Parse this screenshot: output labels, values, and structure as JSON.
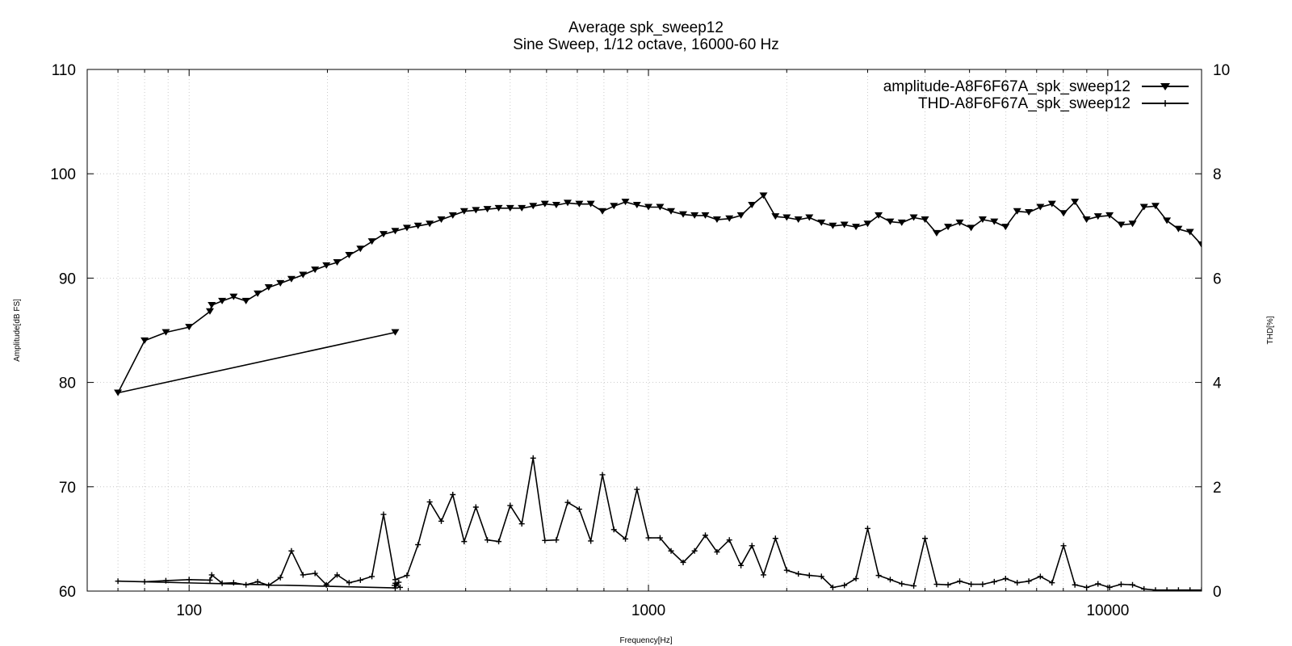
{
  "chart_data": {
    "type": "line",
    "title": "Average spk_sweep12",
    "subtitle": "Sine Sweep, 1/12 octave, 16000-60 Hz",
    "xlabel": "Frequency[Hz]",
    "ylabel": "Amplitude[dB FS]",
    "y2label": "THD[%]",
    "x_scale": "log",
    "xlim": [
      60,
      16000
    ],
    "ylim": [
      60,
      110
    ],
    "y2lim": [
      0,
      10
    ],
    "x_ticks": [
      100,
      1000,
      10000
    ],
    "x_tick_labels": [
      "100",
      "1000",
      "10000"
    ],
    "y_ticks": [
      60,
      70,
      80,
      90,
      100,
      110
    ],
    "y_tick_labels": [
      "60",
      "70",
      "80",
      "90",
      "100",
      "110"
    ],
    "y2_ticks": [
      0,
      2,
      4,
      6,
      8,
      10
    ],
    "y2_tick_labels": [
      "0",
      "2",
      "4",
      "6",
      "8",
      "10"
    ],
    "grid": true,
    "legend_position": "top-right",
    "series": [
      {
        "name": "amplitude-A8F6F67A_spk_sweep12",
        "axis": "left",
        "marker": "triangle-down",
        "x": [
          16000,
          15100,
          14250,
          13450,
          12700,
          11990,
          11320,
          10690,
          10090,
          9520,
          8990,
          8480,
          8010,
          7560,
          7130,
          6730,
          6350,
          5990,
          5660,
          5340,
          5040,
          4760,
          4490,
          4240,
          4000,
          3780,
          3560,
          3360,
          3170,
          3000,
          2830,
          2670,
          2520,
          2380,
          2240,
          2120,
          2000,
          1890,
          1780,
          1680,
          1590,
          1500,
          1410,
          1330,
          1260,
          1190,
          1120,
          1060,
          1000,
          944,
          891,
          841,
          794,
          749,
          707,
          667,
          630,
          595,
          561,
          530,
          500,
          472,
          446,
          421,
          397,
          375,
          354,
          334,
          315,
          298,
          281,
          265,
          250,
          236,
          223,
          210,
          199,
          188,
          177,
          167,
          158,
          149,
          141,
          133,
          125,
          118,
          112,
          111,
          100,
          89,
          80,
          70,
          281
        ],
        "y": [
          93.2,
          94.4,
          94.7,
          95.5,
          96.9,
          96.8,
          95.2,
          95.1,
          96.0,
          95.9,
          95.6,
          97.3,
          96.2,
          97.1,
          96.8,
          96.3,
          96.4,
          94.9,
          95.4,
          95.6,
          94.8,
          95.3,
          94.9,
          94.3,
          95.6,
          95.8,
          95.3,
          95.4,
          96.0,
          95.2,
          94.9,
          95.1,
          95.0,
          95.3,
          95.8,
          95.6,
          95.8,
          95.9,
          97.9,
          97.0,
          96.0,
          95.7,
          95.6,
          96.0,
          96.0,
          96.1,
          96.4,
          96.8,
          96.8,
          97.0,
          97.3,
          96.9,
          96.4,
          97.1,
          97.1,
          97.2,
          97.0,
          97.1,
          96.9,
          96.7,
          96.7,
          96.7,
          96.6,
          96.5,
          96.4,
          96.0,
          95.6,
          95.2,
          95.0,
          94.8,
          94.5,
          94.2,
          93.5,
          92.8,
          92.2,
          91.5,
          91.2,
          90.8,
          90.3,
          89.9,
          89.5,
          89.1,
          88.5,
          87.8,
          88.2,
          87.8,
          87.4,
          86.8,
          85.3,
          84.8,
          84.0,
          79.0,
          84.8
        ],
        "color": "#000000"
      },
      {
        "name": "THD-A8F6F67A_spk_sweep12",
        "axis": "right",
        "marker": "plus",
        "x": [
          16000,
          15100,
          14250,
          13450,
          12700,
          11990,
          11320,
          10690,
          10090,
          9520,
          8990,
          8480,
          8010,
          7560,
          7130,
          6730,
          6350,
          5990,
          5660,
          5340,
          5040,
          4760,
          4490,
          4240,
          4000,
          3780,
          3560,
          3360,
          3170,
          3000,
          2830,
          2670,
          2520,
          2380,
          2240,
          2120,
          2000,
          1890,
          1780,
          1680,
          1590,
          1500,
          1410,
          1330,
          1260,
          1190,
          1120,
          1060,
          1000,
          944,
          891,
          841,
          794,
          749,
          707,
          667,
          630,
          595,
          561,
          530,
          500,
          472,
          446,
          421,
          397,
          375,
          354,
          334,
          315,
          298,
          281,
          265,
          250,
          236,
          223,
          210,
          199,
          188,
          177,
          167,
          158,
          149,
          141,
          133,
          125,
          118,
          112,
          111,
          100,
          89,
          80,
          70,
          281,
          286,
          280,
          281,
          288
        ],
        "y": [
          0.02,
          0.02,
          0.02,
          0.02,
          0.02,
          0.04,
          0.12,
          0.13,
          0.07,
          0.14,
          0.07,
          0.12,
          0.87,
          0.16,
          0.28,
          0.19,
          0.16,
          0.24,
          0.18,
          0.13,
          0.13,
          0.19,
          0.12,
          0.13,
          1.01,
          0.1,
          0.14,
          0.22,
          0.3,
          1.2,
          0.24,
          0.11,
          0.07,
          0.28,
          0.3,
          0.33,
          0.4,
          1.01,
          0.31,
          0.87,
          0.49,
          0.98,
          0.75,
          1.07,
          0.77,
          0.55,
          0.77,
          1.02,
          1.02,
          1.95,
          1.0,
          1.18,
          2.23,
          0.96,
          1.57,
          1.7,
          0.98,
          0.97,
          2.55,
          1.29,
          1.64,
          0.95,
          0.98,
          1.61,
          0.95,
          1.85,
          1.34,
          1.71,
          0.89,
          0.3,
          0.22,
          1.47,
          0.28,
          0.21,
          0.16,
          0.31,
          0.12,
          0.34,
          0.31,
          0.77,
          0.26,
          0.11,
          0.18,
          0.12,
          0.16,
          0.15,
          0.31,
          0.21,
          0.22,
          0.2,
          0.18,
          0.19,
          0.06,
          0.17,
          0.11,
          0.15,
          0.07
        ],
        "color": "#000000"
      }
    ]
  }
}
